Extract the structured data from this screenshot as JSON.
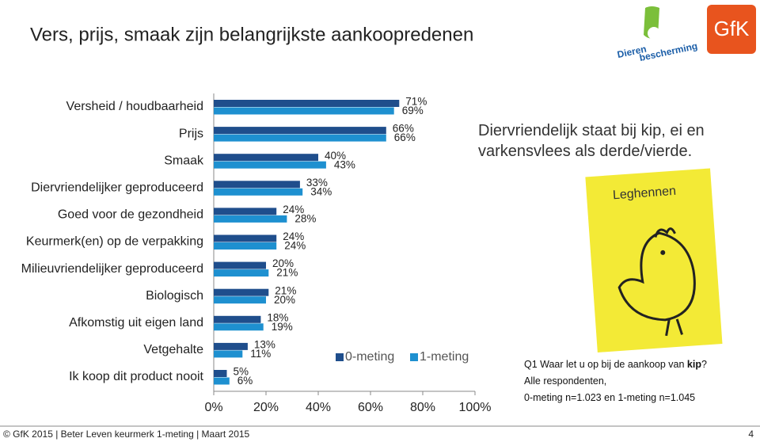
{
  "header": {
    "title": "Vers, prijs, smaak zijn belangrijkste aankoopredenen"
  },
  "logos": {
    "dierenbescherming": [
      "Dieren",
      "bescherming"
    ],
    "gfk": "GfK"
  },
  "annotation": "Diervriendelijk staat bij kip, ei en varkensvlees als derde/vierde.",
  "sticky_note": "Leghennen",
  "note": {
    "question_start": "Q1 Waar let u op bij de aankoop van ",
    "question_bold": "kip",
    "question_end": "?",
    "lines": [
      "Alle respondenten,",
      "0-meting n=1.023 en 1-meting n=1.045"
    ]
  },
  "footer": {
    "text": "© GfK 2015 | Beter Leven keurmerk 1-meting | Maart 2015",
    "page": "4"
  },
  "chart_data": {
    "type": "hbar",
    "categories": [
      "Versheid / houdbaarheid",
      "Prijs",
      "Smaak",
      "Diervriendelijker geproduceerd",
      "Goed voor de gezondheid",
      "Keurmerk(en) op de verpakking",
      "Milieuvriendelijker geproduceerd",
      "Biologisch",
      "Afkomstig uit eigen land",
      "Vetgehalte",
      "Ik koop dit product nooit"
    ],
    "series": [
      {
        "name": "0-meting",
        "color": "#1f4e8c",
        "values": [
          71,
          66,
          40,
          33,
          24,
          24,
          20,
          21,
          18,
          13,
          5
        ],
        "value_labels": [
          "71%",
          "66%",
          "40%",
          "33%",
          "24%",
          "24%",
          "20%",
          "21%",
          "18%",
          "13%",
          "5%"
        ]
      },
      {
        "name": "1-meting",
        "color": "#1e90d0",
        "values": [
          69,
          66,
          43,
          34,
          28,
          24,
          21,
          20,
          19,
          11,
          6
        ],
        "value_labels": [
          "69%",
          "66%",
          "43%",
          "34%",
          "28%",
          "24%",
          "21%",
          "20%",
          "19%",
          "11%",
          "6%"
        ]
      }
    ],
    "xlim": [
      0,
      100
    ],
    "xticks": [
      {
        "value": 0,
        "label": "0%"
      },
      {
        "value": 20,
        "label": "20%"
      },
      {
        "value": 40,
        "label": "40%"
      },
      {
        "value": 60,
        "label": "60%"
      },
      {
        "value": 80,
        "label": "80%"
      },
      {
        "value": 100,
        "label": "100%"
      }
    ]
  }
}
